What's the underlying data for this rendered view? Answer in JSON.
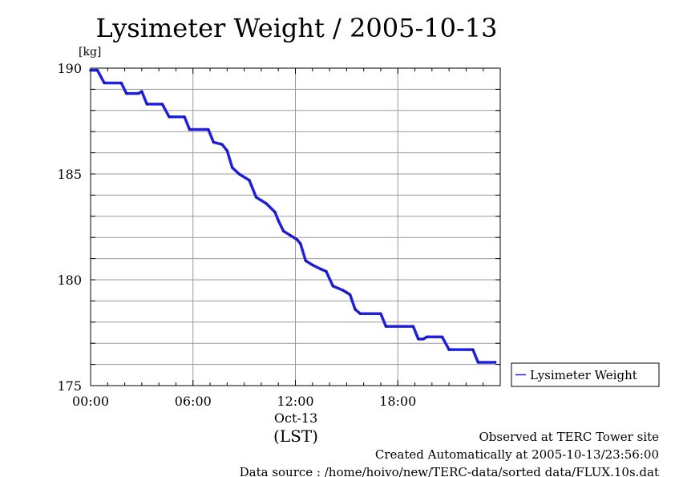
{
  "chart_data": {
    "type": "line",
    "title": "Lysimeter Weight / 2005-10-13",
    "ylabel": "[kg]",
    "xlabel": "(LST)",
    "date_label": "Oct-13",
    "ylim": [
      175,
      190
    ],
    "xlim": [
      0,
      24
    ],
    "x_unit": "hours since 2005-10-13 00:00 LST",
    "x_ticks": [
      {
        "value": 0,
        "label": "00:00"
      },
      {
        "value": 6,
        "label": "06:00"
      },
      {
        "value": 12,
        "label": "12:00"
      },
      {
        "value": 18,
        "label": "18:00"
      }
    ],
    "y_ticks": [
      {
        "value": 175,
        "label": "175"
      },
      {
        "value": 180,
        "label": "180"
      },
      {
        "value": 185,
        "label": "185"
      },
      {
        "value": 190,
        "label": "190"
      }
    ],
    "grid": true,
    "legend_position": "right",
    "series": [
      {
        "name": "Lysimeter Weight",
        "color": "#2222ee",
        "points": [
          [
            0.0,
            189.9
          ],
          [
            0.4,
            189.9
          ],
          [
            0.8,
            189.3
          ],
          [
            1.8,
            189.3
          ],
          [
            2.1,
            188.8
          ],
          [
            2.8,
            188.8
          ],
          [
            3.0,
            188.9
          ],
          [
            3.3,
            188.3
          ],
          [
            4.2,
            188.3
          ],
          [
            4.6,
            187.7
          ],
          [
            5.5,
            187.7
          ],
          [
            5.8,
            187.1
          ],
          [
            6.9,
            187.1
          ],
          [
            7.2,
            186.5
          ],
          [
            7.7,
            186.4
          ],
          [
            8.0,
            186.1
          ],
          [
            8.3,
            185.3
          ],
          [
            8.7,
            185.0
          ],
          [
            9.3,
            184.7
          ],
          [
            9.7,
            183.9
          ],
          [
            10.3,
            183.6
          ],
          [
            10.8,
            183.2
          ],
          [
            11.0,
            182.8
          ],
          [
            11.3,
            182.3
          ],
          [
            11.7,
            182.1
          ],
          [
            12.1,
            181.9
          ],
          [
            12.3,
            181.7
          ],
          [
            12.6,
            180.9
          ],
          [
            13.0,
            180.7
          ],
          [
            13.5,
            180.5
          ],
          [
            13.8,
            180.4
          ],
          [
            14.2,
            179.7
          ],
          [
            14.8,
            179.5
          ],
          [
            15.0,
            179.4
          ],
          [
            15.2,
            179.3
          ],
          [
            15.5,
            178.6
          ],
          [
            15.8,
            178.4
          ],
          [
            17.0,
            178.4
          ],
          [
            17.3,
            177.8
          ],
          [
            18.9,
            177.8
          ],
          [
            19.2,
            177.2
          ],
          [
            19.5,
            177.2
          ],
          [
            19.7,
            177.3
          ],
          [
            20.6,
            177.3
          ],
          [
            21.0,
            176.7
          ],
          [
            22.4,
            176.7
          ],
          [
            22.7,
            176.1
          ],
          [
            23.7,
            176.1
          ]
        ]
      }
    ]
  },
  "footer": {
    "line1": "Observed at TERC Tower site",
    "line2": "Created Automatically at 2005-10-13/23:56:00",
    "line3": "Data source : /home/hoivo/new/TERC-data/sorted  data/FLUX.10s.dat"
  }
}
